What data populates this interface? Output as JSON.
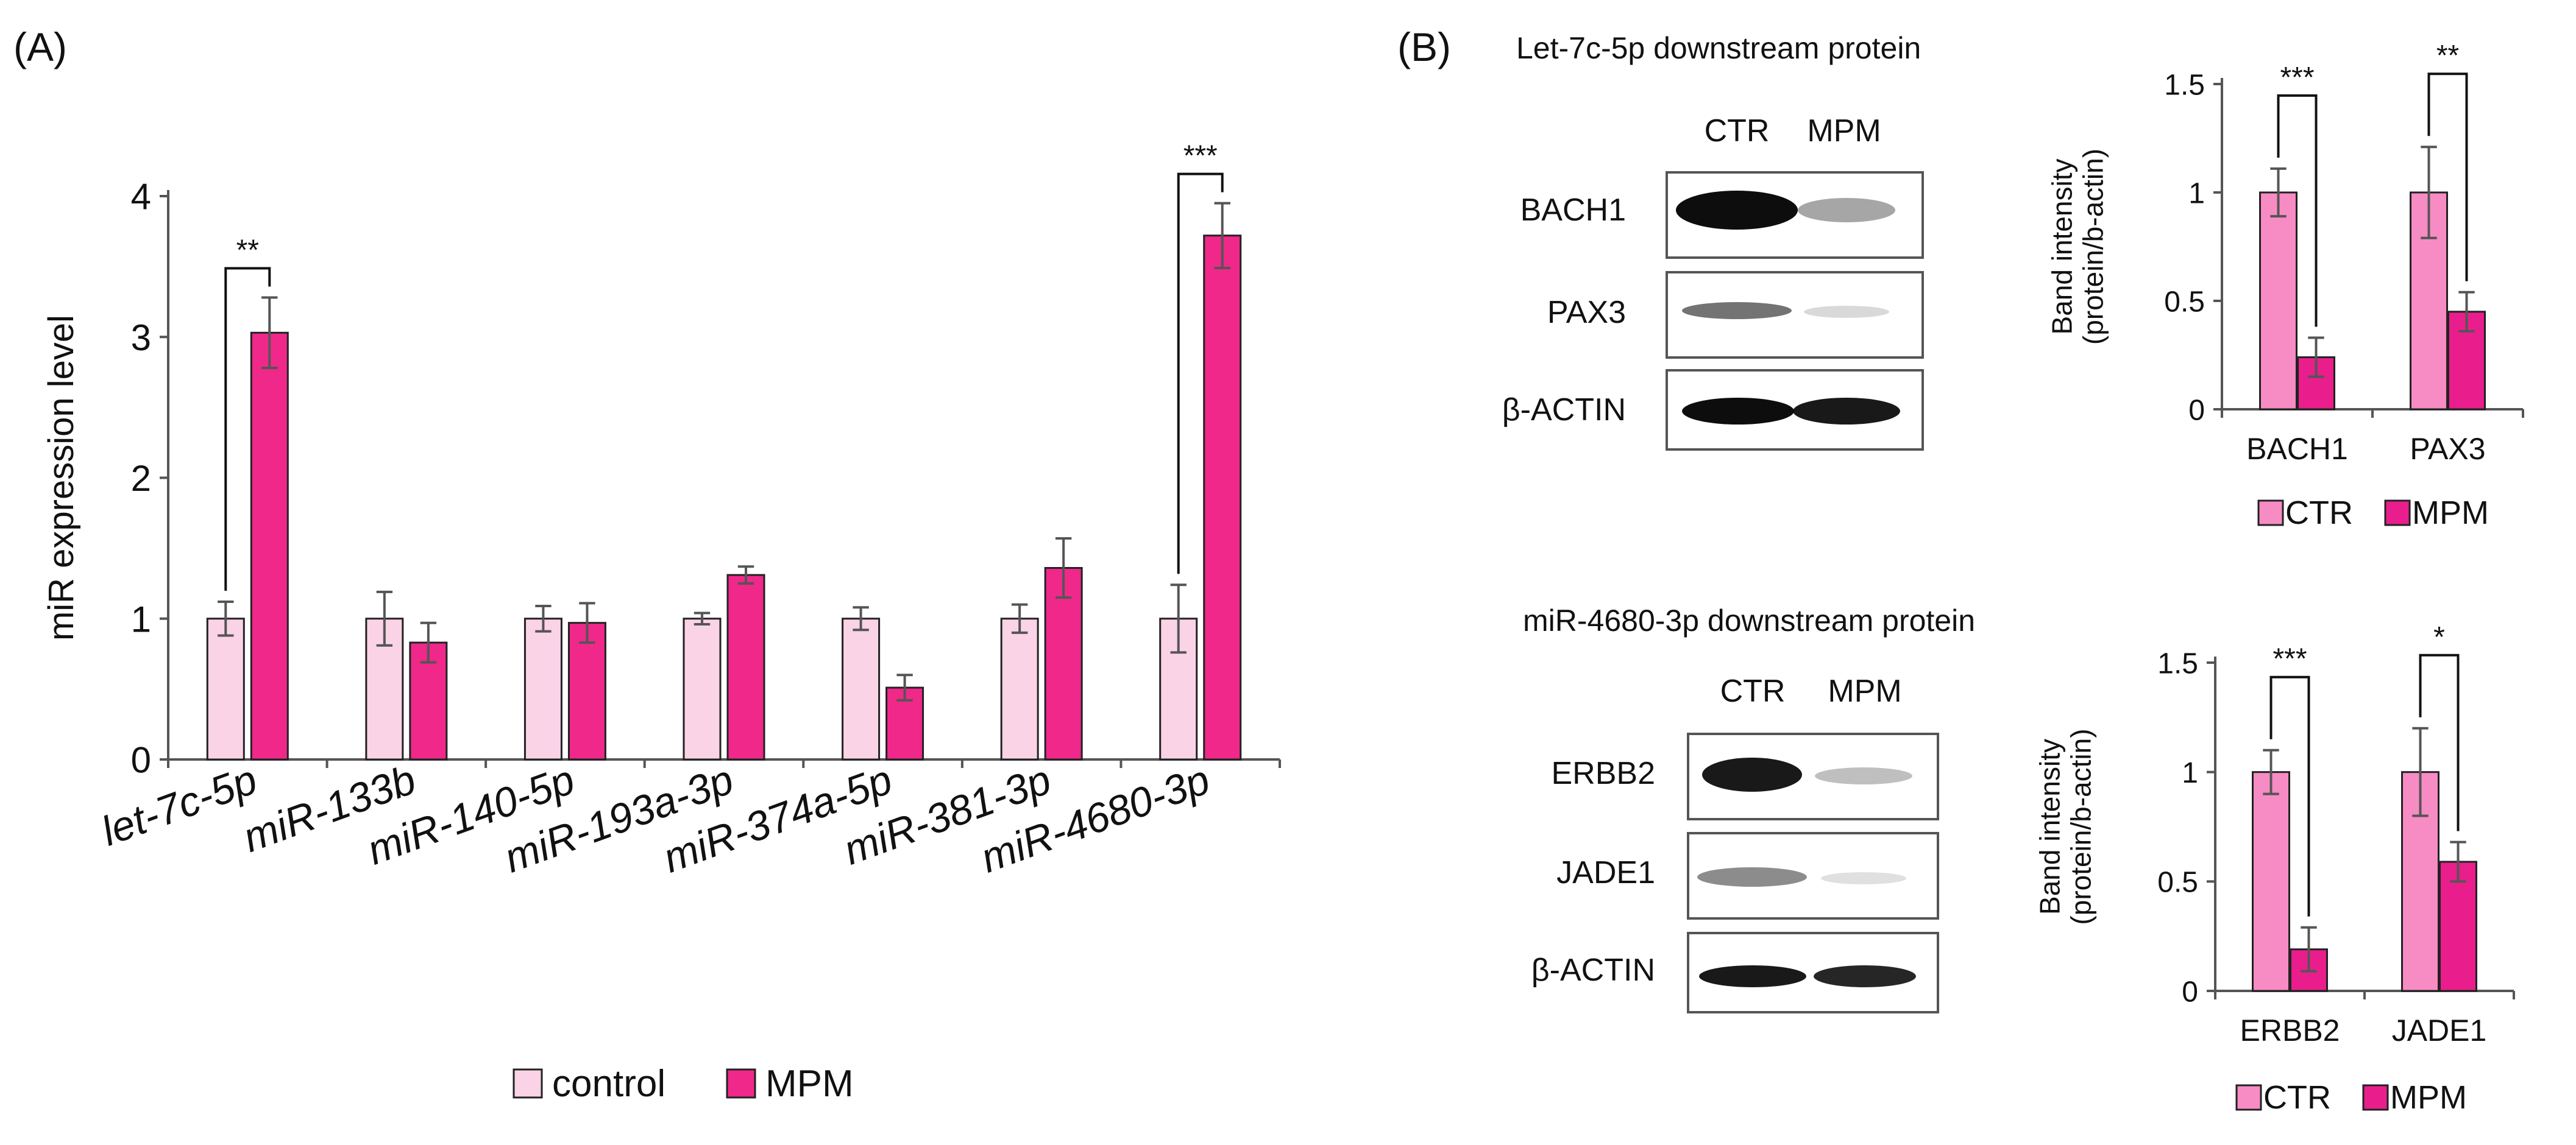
{
  "panel_a": {
    "label": "(A)",
    "legend": {
      "series1": "control",
      "series2": "MPM"
    }
  },
  "panel_b": {
    "label": "(B)",
    "blot1": {
      "title": "Let-7c-5p downstream protein",
      "lanes": [
        "CTR",
        "MPM"
      ],
      "rows": [
        "BACH1",
        "PAX3",
        "β-ACTIN"
      ],
      "intensity": [
        [
          0.95,
          0.35
        ],
        [
          0.55,
          0.15
        ],
        [
          0.95,
          0.9
        ]
      ]
    },
    "blot2": {
      "title": "miR-4680-3p downstream protein",
      "lanes": [
        "CTR",
        "MPM"
      ],
      "rows": [
        "ERBB2",
        "JADE1",
        "β-ACTIN"
      ],
      "intensity": [
        [
          0.9,
          0.25
        ],
        [
          0.45,
          0.12
        ],
        [
          0.9,
          0.85
        ]
      ]
    },
    "legend": {
      "series1": "CTR",
      "series2": "MPM"
    }
  },
  "colors": {
    "control_a": "#fbd3e6",
    "mpm_a": "#f0288a",
    "ctr_b": "#f78bc4",
    "mpm_b": "#e91e8c"
  },
  "chart_data": [
    {
      "type": "bar",
      "categories": [
        "let-7c-5p",
        "miR-133b",
        "miR-140-5p",
        "miR-193a-3p",
        "miR-374a-5p",
        "miR-381-3p",
        "miR-4680-3p"
      ],
      "series": [
        {
          "name": "control",
          "values": [
            1.0,
            1.0,
            1.0,
            1.0,
            1.0,
            1.0,
            1.0
          ],
          "errors": [
            0.12,
            0.19,
            0.09,
            0.04,
            0.08,
            0.1,
            0.24
          ]
        },
        {
          "name": "MPM",
          "values": [
            3.03,
            0.83,
            0.97,
            1.31,
            0.51,
            1.36,
            3.72
          ],
          "errors": [
            0.25,
            0.14,
            0.14,
            0.06,
            0.09,
            0.21,
            0.23
          ]
        }
      ],
      "ylabel": "miR expression level",
      "ylim": [
        0,
        4
      ],
      "yticks": [
        "0",
        "1",
        "2",
        "3",
        "4"
      ],
      "annotations": [
        {
          "category": "let-7c-5p",
          "text": "**"
        },
        {
          "category": "miR-4680-3p",
          "text": "***"
        }
      ]
    },
    {
      "type": "bar",
      "categories": [
        "BACH1",
        "PAX3"
      ],
      "series": [
        {
          "name": "CTR",
          "values": [
            1.0,
            1.0
          ],
          "errors": [
            0.11,
            0.21
          ]
        },
        {
          "name": "MPM",
          "values": [
            0.24,
            0.45
          ],
          "errors": [
            0.09,
            0.09
          ]
        }
      ],
      "ylabel": "Band intensity (protein/b-actin)",
      "ylabel_lines": [
        "Band intensity",
        "(protein/b-actin)"
      ],
      "ylim": [
        0,
        1.5
      ],
      "yticks": [
        "0",
        "0.5",
        "1",
        "1.5"
      ],
      "annotations": [
        {
          "category": "BACH1",
          "text": "***"
        },
        {
          "category": "PAX3",
          "text": "**"
        }
      ]
    },
    {
      "type": "bar",
      "categories": [
        "ERBB2",
        "JADE1"
      ],
      "series": [
        {
          "name": "CTR",
          "values": [
            1.0,
            1.0
          ],
          "errors": [
            0.1,
            0.2
          ]
        },
        {
          "name": "MPM",
          "values": [
            0.19,
            0.59
          ],
          "errors": [
            0.1,
            0.09
          ]
        }
      ],
      "ylabel": "Band intensity (protein/b-actin)",
      "ylabel_lines": [
        "Band intensity",
        "(protein/b-actin)"
      ],
      "ylim": [
        0,
        1.5
      ],
      "yticks": [
        "0",
        "0.5",
        "1",
        "1.5"
      ],
      "annotations": [
        {
          "category": "ERBB2",
          "text": "***"
        },
        {
          "category": "JADE1",
          "text": "*"
        }
      ]
    }
  ]
}
